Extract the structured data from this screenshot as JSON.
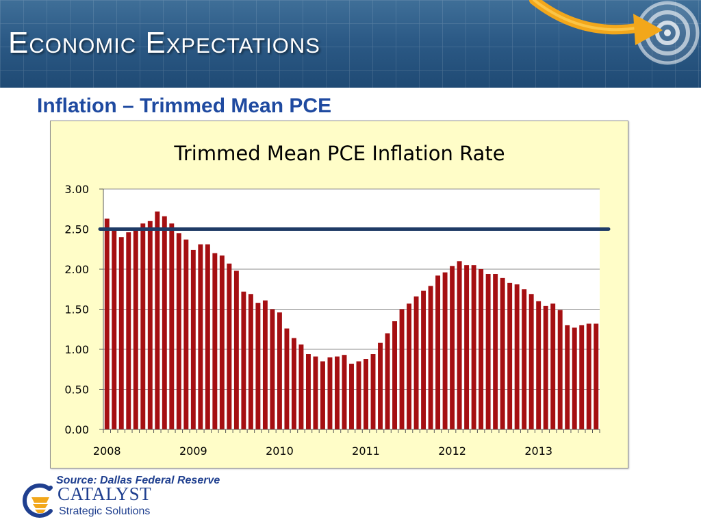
{
  "header": {
    "title": "Economic Expectations"
  },
  "subtitle": "Inflation – Trimmed Mean PCE",
  "source": "Source:  Dallas Federal Reserve",
  "logo": {
    "name": "CATALYST",
    "tagline": "Strategic Solutions"
  },
  "colors": {
    "bar": "#a50f12",
    "reference_line": "#1f3b66",
    "chart_background": "#fffdc8",
    "header": "#2c5a86",
    "accent_arrow": "#f2a71b"
  },
  "chart_data": {
    "type": "bar",
    "title": "Trimmed Mean PCE Inflation Rate",
    "xlabel": "",
    "ylabel": "",
    "ylim": [
      0,
      3
    ],
    "yticks": [
      "0.00",
      "0.50",
      "1.00",
      "1.50",
      "2.00",
      "2.50",
      "3.00"
    ],
    "xtick_labels": [
      "2008",
      "2009",
      "2010",
      "2011",
      "2012",
      "2013"
    ],
    "xtick_start_index": [
      0,
      12,
      24,
      36,
      48,
      60
    ],
    "grid": true,
    "reference_line": {
      "value": 2.5
    },
    "series": [
      {
        "values": [
          2.63,
          2.5,
          2.4,
          2.46,
          2.51,
          2.57,
          2.6,
          2.72,
          2.66,
          2.57,
          2.45,
          2.37,
          2.24,
          2.31,
          2.31,
          2.2,
          2.17,
          2.07,
          1.98,
          1.72,
          1.69,
          1.58,
          1.61,
          1.5,
          1.46,
          1.26,
          1.14,
          1.06,
          0.94,
          0.91,
          0.85,
          0.9,
          0.91,
          0.93,
          0.82,
          0.85,
          0.88,
          0.94,
          1.08,
          1.2,
          1.35,
          1.5,
          1.57,
          1.66,
          1.73,
          1.79,
          1.92,
          1.96,
          2.04,
          2.1,
          2.05,
          2.05,
          2.0,
          1.94,
          1.94,
          1.89,
          1.83,
          1.81,
          1.75,
          1.69,
          1.6,
          1.54,
          1.57,
          1.49,
          1.3,
          1.27,
          1.3,
          1.32,
          1.32
        ]
      }
    ]
  }
}
